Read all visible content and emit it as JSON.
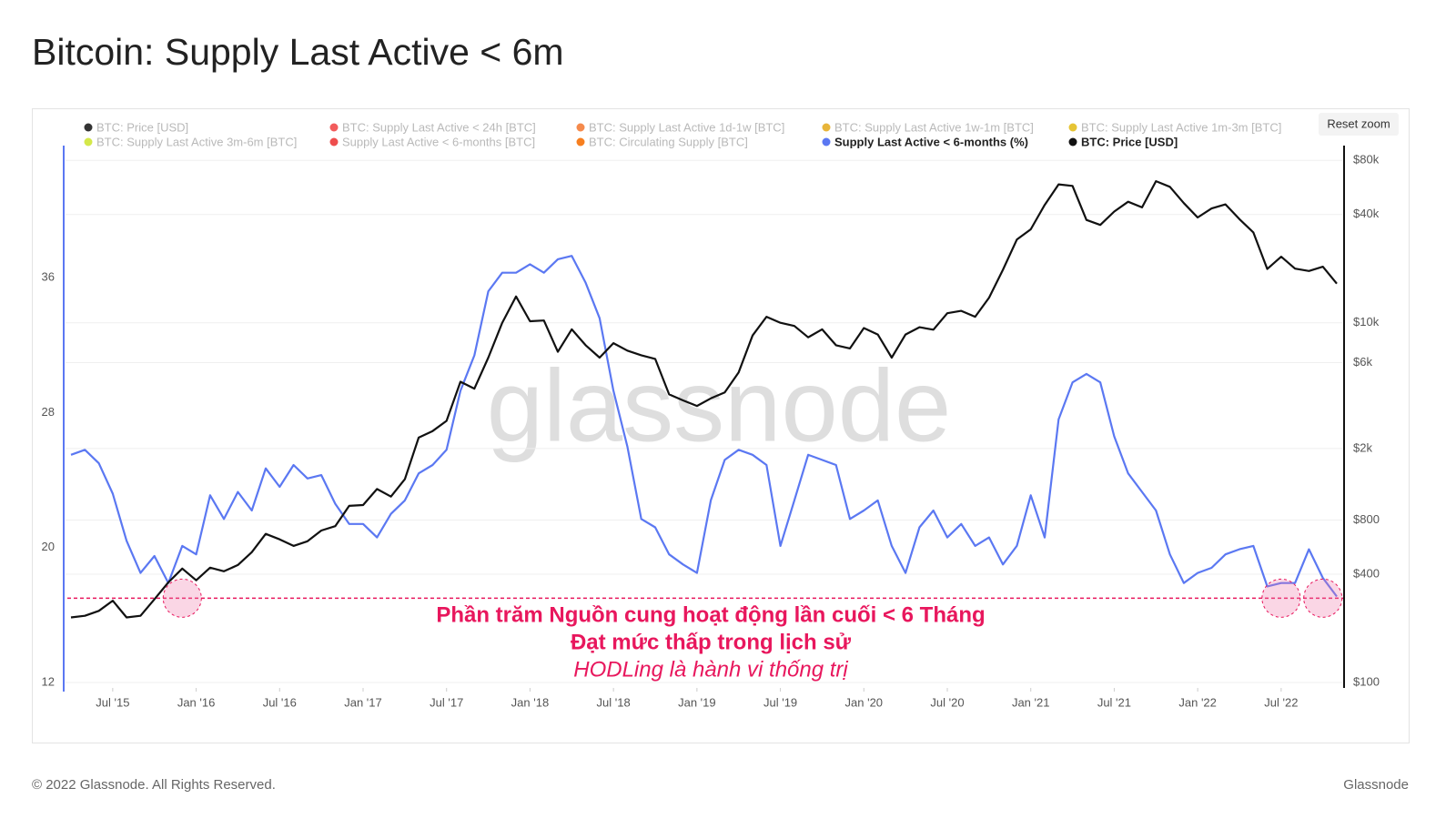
{
  "chart_data": {
    "type": "line",
    "title": "Bitcoin: Supply Last Active < 6m",
    "watermark": "glassnode",
    "reset_button": "Reset zoom",
    "footer_left": "© 2022 Glassnode. All Rights Reserved.",
    "footer_right": "Glassnode",
    "annotations": [
      "Phần trăm Nguồn cung hoạt động lần cuối < 6 Tháng",
      "Đạt mức thấp trong lịch sử",
      "HODLing là hành vi thống trị"
    ],
    "threshold": 17.0,
    "highlights": [
      "2015-12",
      "2022-07",
      "2022-10"
    ],
    "hidden_legend": [
      {
        "name": "BTC: Price [USD]",
        "color": "#333333"
      },
      {
        "name": "BTC: Supply Last Active < 24h [BTC]",
        "color": "#f25c5c"
      },
      {
        "name": "BTC: Supply Last Active 1d-1w [BTC]",
        "color": "#f58a4c"
      },
      {
        "name": "BTC: Supply Last Active 1w-1m [BTC]",
        "color": "#e8b53a"
      },
      {
        "name": "BTC: Supply Last Active 1m-3m [BTC]",
        "color": "#e6c435"
      },
      {
        "name": "BTC: Supply Last Active 3m-6m [BTC]",
        "color": "#d4e84a"
      },
      {
        "name": "Supply Last Active < 6-months [BTC]",
        "color": "#ee4d4d"
      },
      {
        "name": "BTC: Circulating Supply [BTC]",
        "color": "#f77f1f"
      }
    ],
    "x": [
      "2015-04",
      "2015-05",
      "2015-06",
      "2015-07",
      "2015-08",
      "2015-09",
      "2015-10",
      "2015-11",
      "2015-12",
      "2016-01",
      "2016-02",
      "2016-03",
      "2016-04",
      "2016-05",
      "2016-06",
      "2016-07",
      "2016-08",
      "2016-09",
      "2016-10",
      "2016-11",
      "2016-12",
      "2017-01",
      "2017-02",
      "2017-03",
      "2017-04",
      "2017-05",
      "2017-06",
      "2017-07",
      "2017-08",
      "2017-09",
      "2017-10",
      "2017-11",
      "2017-12",
      "2018-01",
      "2018-02",
      "2018-03",
      "2018-04",
      "2018-05",
      "2018-06",
      "2018-07",
      "2018-08",
      "2018-09",
      "2018-10",
      "2018-11",
      "2018-12",
      "2019-01",
      "2019-02",
      "2019-03",
      "2019-04",
      "2019-05",
      "2019-06",
      "2019-07",
      "2019-08",
      "2019-09",
      "2019-10",
      "2019-11",
      "2019-12",
      "2020-01",
      "2020-02",
      "2020-03",
      "2020-04",
      "2020-05",
      "2020-06",
      "2020-07",
      "2020-08",
      "2020-09",
      "2020-10",
      "2020-11",
      "2020-12",
      "2021-01",
      "2021-02",
      "2021-03",
      "2021-04",
      "2021-05",
      "2021-06",
      "2021-07",
      "2021-08",
      "2021-09",
      "2021-10",
      "2021-11",
      "2021-12",
      "2022-01",
      "2022-02",
      "2022-03",
      "2022-04",
      "2022-05",
      "2022-06",
      "2022-07",
      "2022-08",
      "2022-09",
      "2022-10",
      "2022-11"
    ],
    "series": [
      {
        "name": "Supply Last Active < 6-months (%)",
        "color": "#5b78f2",
        "axis": "y",
        "values": [
          25.5,
          25.8,
          25,
          23.2,
          20.4,
          18.5,
          19.5,
          17.9,
          20.1,
          19.6,
          23.1,
          21.7,
          23.3,
          22.2,
          24.7,
          23.6,
          24.9,
          24.1,
          24.3,
          22.6,
          21.4,
          21.4,
          20.6,
          22,
          22.8,
          24.4,
          24.9,
          25.8,
          29.3,
          31.4,
          35.2,
          36.3,
          36.3,
          36.8,
          36.3,
          37.1,
          37.3,
          35.7,
          33.6,
          29.3,
          26,
          21.7,
          21.2,
          19.6,
          19,
          18.5,
          22.8,
          25.2,
          25.8,
          25.5,
          24.9,
          20.1,
          22.8,
          25.5,
          25.2,
          24.9,
          21.7,
          22.2,
          22.8,
          20.1,
          18.5,
          21.2,
          22.2,
          20.6,
          21.4,
          20.1,
          20.6,
          19,
          20.1,
          23.1,
          20.6,
          27.6,
          29.8,
          30.3,
          29.8,
          26.6,
          24.4,
          23.3,
          22.2,
          19.6,
          17.9,
          18.5,
          18.8,
          19.6,
          19.9,
          20.1,
          17.7,
          17.9,
          17.9,
          19.9,
          18.2,
          17.1
        ]
      },
      {
        "name": "BTC: Price [USD]",
        "color": "#111111",
        "axis": "y2",
        "values": [
          230,
          235,
          250,
          285,
          230,
          235,
          290,
          360,
          430,
          370,
          435,
          415,
          450,
          530,
          670,
          625,
          575,
          610,
          700,
          740,
          960,
          970,
          1190,
          1080,
          1350,
          2300,
          2500,
          2850,
          4700,
          4300,
          6400,
          10000,
          14000,
          10200,
          10300,
          6900,
          9200,
          7500,
          6400,
          7700,
          7000,
          6600,
          6300,
          4000,
          3700,
          3450,
          3800,
          4100,
          5300,
          8500,
          10800,
          10000,
          9600,
          8300,
          9200,
          7500,
          7200,
          9350,
          8600,
          6400,
          8600,
          9450,
          9150,
          11300,
          11650,
          10800,
          13800,
          19700,
          29000,
          33100,
          45200,
          58800,
          57700,
          37300,
          35000,
          41500,
          47100,
          43800,
          61300,
          57000,
          46300,
          38500,
          43200,
          45500,
          37700,
          31800,
          19900,
          23300,
          20000,
          19400,
          20500,
          16500
        ]
      }
    ],
    "xlim": [
      "2015-04",
      "2022-11"
    ],
    "xticks": [
      {
        "value": "2015-07",
        "label": "Jul '15"
      },
      {
        "value": "2016-01",
        "label": "Jan '16"
      },
      {
        "value": "2016-07",
        "label": "Jul '16"
      },
      {
        "value": "2017-01",
        "label": "Jan '17"
      },
      {
        "value": "2017-07",
        "label": "Jul '17"
      },
      {
        "value": "2018-01",
        "label": "Jan '18"
      },
      {
        "value": "2018-07",
        "label": "Jul '18"
      },
      {
        "value": "2019-01",
        "label": "Jan '19"
      },
      {
        "value": "2019-07",
        "label": "Jul '19"
      },
      {
        "value": "2020-01",
        "label": "Jan '20"
      },
      {
        "value": "2020-07",
        "label": "Jul '20"
      },
      {
        "value": "2021-01",
        "label": "Jan '21"
      },
      {
        "value": "2021-07",
        "label": "Jul '21"
      },
      {
        "value": "2022-01",
        "label": "Jan '22"
      },
      {
        "value": "2022-07",
        "label": "Jul '22"
      }
    ],
    "ylim": [
      12,
      43.3
    ],
    "yticks": [
      12,
      20,
      28,
      36
    ],
    "y2lim": [
      100,
      86000
    ],
    "y2log": true,
    "y2ticks": [
      {
        "value": 100,
        "label": "$100"
      },
      {
        "value": 400,
        "label": "$400"
      },
      {
        "value": 800,
        "label": "$800"
      },
      {
        "value": 2000,
        "label": "$2k"
      },
      {
        "value": 6000,
        "label": "$6k"
      },
      {
        "value": 10000,
        "label": "$10k"
      },
      {
        "value": 40000,
        "label": "$40k"
      },
      {
        "value": 80000,
        "label": "$80k"
      }
    ],
    "grid": true
  }
}
